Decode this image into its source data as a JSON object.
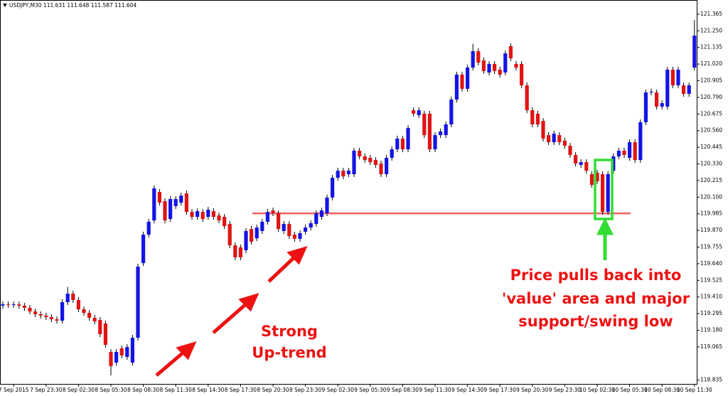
{
  "chart_data": {
    "type": "candlestick",
    "header": "USDJPY,M30  111.631 111.648 111.587 111.604",
    "up_color": "#1414e6",
    "down_color": "#e01414",
    "annotations": [
      "Strong",
      "Up-trend",
      "Price pulls back into",
      "'value' area and major",
      "support/swing low"
    ],
    "support_level": 119.989,
    "ylim": [
      118.809,
      121.463
    ],
    "yticks": [
      121.365,
      {
        "value": 121.25,
        "label": "121.250"
      },
      121.135,
      {
        "value": 121.02,
        "label": "121.020"
      },
      120.905,
      {
        "value": 120.79,
        "label": "120.790"
      },
      120.675,
      {
        "value": 120.56,
        "label": "120.560"
      },
      120.445,
      {
        "value": 120.33,
        "label": "120.330"
      },
      120.215,
      {
        "value": 120.1,
        "label": "120.100"
      },
      119.985,
      {
        "value": 119.87,
        "label": "119.870"
      },
      119.755,
      {
        "value": 119.64,
        "label": "119.640"
      },
      119.525,
      {
        "value": 119.41,
        "label": "119.410"
      },
      119.295,
      {
        "value": 119.18,
        "label": "119.180"
      },
      119.065,
      118.835
    ],
    "categories": [
      null,
      null,
      "7 Sep 2015",
      null,
      null,
      null,
      null,
      null,
      "7 Sep 23:30",
      null,
      null,
      null,
      null,
      null,
      "8 Sep 02:30",
      null,
      null,
      null,
      null,
      null,
      "8 Sep 05:30",
      null,
      null,
      null,
      null,
      null,
      "8 Sep 08:30",
      null,
      null,
      null,
      null,
      null,
      "8 Sep 11:30",
      null,
      null,
      null,
      null,
      null,
      "8 Sep 14:30",
      null,
      null,
      null,
      null,
      null,
      "8 Sep 17:30",
      null,
      null,
      null,
      null,
      null,
      "8 Sep 20:30",
      null,
      null,
      null,
      null,
      null,
      "8 Sep 23:30",
      null,
      null,
      null,
      null,
      null,
      "9 Sep 02:30",
      null,
      null,
      null,
      null,
      null,
      "9 Sep 05:30",
      null,
      null,
      null,
      null,
      null,
      "9 Sep 08:30",
      null,
      null,
      null,
      null,
      null,
      "9 Sep 11:30",
      null,
      null,
      null,
      null,
      null,
      "9 Sep 14:30",
      null,
      null,
      null,
      null,
      null,
      "9 Sep 17:30",
      null,
      null,
      null,
      null,
      null,
      "9 Sep 20:30",
      null,
      null,
      null,
      null,
      null,
      "9 Sep 23:30",
      null,
      null,
      null,
      null,
      null,
      "10 Sep 02:30",
      null,
      null,
      null,
      null,
      null,
      "10 Sep 05:30",
      null,
      null,
      null,
      null,
      null,
      "10 Sep 08:30",
      null,
      null,
      null,
      null,
      null,
      "10 Sep 11:30"
    ],
    "open": [
      119.35,
      119.359,
      119.355,
      119.359,
      119.35,
      119.335,
      119.31,
      119.291,
      119.281,
      119.271,
      119.256,
      119.246,
      119.374,
      119.433,
      119.389,
      119.325,
      119.3,
      119.266,
      119.251,
      119.227,
      119.03,
      118.956,
      119.055,
      118.996,
      118.956,
      119.128,
      119.644,
      119.841,
      119.939,
      120.136,
      120.072,
      119.949,
      120.038,
      120.062,
      120.126,
      119.998,
      119.964,
      119.998,
      119.964,
      120.003,
      119.974,
      119.964,
      119.915,
      119.767,
      119.753,
      119.733,
      119.88,
      119.816,
      119.866,
      119.93,
      120.008,
      119.989,
      119.866,
      119.915,
      119.841,
      119.812,
      119.861,
      119.89,
      119.915,
      119.964,
      119.989,
      120.097,
      120.234,
      120.283,
      120.259,
      120.259,
      120.421,
      120.382,
      120.372,
      120.357,
      120.332,
      120.259,
      120.372,
      120.431,
      120.505,
      120.431,
      120.701,
      120.667,
      120.677,
      120.677,
      120.431,
      120.529,
      120.529,
      120.603,
      120.775,
      120.947,
      120.849,
      120.996,
      121.109,
      121.045,
      120.962,
      121.021,
      120.981,
      120.962,
      121.144,
      121.021,
      121.021,
      120.873,
      120.701,
      120.677,
      120.627,
      120.529,
      120.48,
      120.529,
      120.49,
      120.455,
      120.392,
      120.323,
      120.342,
      120.259,
      120.269,
      120.259,
      119.998,
      120.283,
      120.382,
      120.421,
      120.372,
      120.48,
      120.357,
      120.618,
      120.824,
      120.824,
      120.726,
      120.726,
      120.981,
      120.873,
      120.873,
      120.814,
      120.996
    ],
    "high": [
      119.379,
      119.379,
      119.379,
      119.379,
      119.37,
      119.355,
      119.33,
      119.311,
      119.301,
      119.291,
      119.276,
      119.394,
      119.48,
      119.453,
      119.409,
      119.345,
      119.32,
      119.286,
      119.271,
      119.247,
      119.05,
      119.05,
      119.075,
      119.084,
      119.148,
      119.64,
      119.861,
      119.95,
      120.181,
      120.156,
      120.092,
      120.107,
      120.107,
      120.131,
      120.146,
      120.018,
      120.023,
      120.018,
      120.033,
      120.023,
      119.994,
      119.984,
      119.935,
      119.787,
      119.773,
      119.886,
      119.9,
      119.91,
      119.95,
      120.018,
      120.028,
      120.009,
      119.935,
      119.935,
      119.861,
      119.871,
      119.91,
      119.94,
      120.009,
      120.028,
      120.117,
      120.254,
      120.303,
      120.303,
      120.303,
      120.441,
      120.441,
      120.402,
      120.392,
      120.377,
      120.352,
      120.392,
      120.451,
      120.525,
      120.525,
      120.598,
      120.721,
      120.721,
      120.697,
      120.697,
      120.549,
      120.574,
      120.623,
      120.795,
      120.967,
      120.967,
      121.016,
      121.16,
      121.129,
      121.065,
      121.041,
      121.041,
      121.001,
      121.114,
      121.164,
      121.041,
      121.041,
      120.893,
      120.721,
      120.697,
      120.647,
      120.549,
      120.559,
      120.549,
      120.51,
      120.475,
      120.412,
      120.362,
      120.362,
      120.279,
      120.289,
      120.279,
      120.279,
      120.403,
      120.441,
      120.441,
      120.5,
      120.5,
      120.638,
      120.844,
      120.849,
      120.844,
      120.77,
      121.001,
      121.001,
      121.001,
      120.893,
      120.893,
      121.325
    ],
    "low": [
      119.33,
      119.335,
      119.335,
      119.33,
      119.315,
      119.29,
      119.271,
      119.261,
      119.251,
      119.236,
      119.226,
      119.226,
      119.354,
      119.369,
      119.305,
      119.28,
      119.246,
      119.221,
      119.133,
      119.059,
      118.868,
      118.936,
      118.986,
      118.976,
      118.936,
      119.108,
      119.624,
      119.821,
      119.919,
      120.042,
      119.919,
      119.929,
      120.018,
      120.042,
      119.978,
      119.944,
      119.944,
      119.929,
      119.944,
      119.944,
      119.919,
      119.88,
      119.747,
      119.664,
      119.664,
      119.713,
      119.772,
      119.796,
      119.846,
      119.91,
      119.969,
      119.86,
      119.846,
      119.811,
      119.792,
      119.792,
      119.841,
      119.87,
      119.895,
      119.944,
      119.969,
      120.077,
      120.214,
      120.224,
      120.239,
      120.239,
      120.362,
      120.337,
      120.322,
      120.303,
      120.239,
      120.239,
      120.352,
      120.411,
      120.411,
      120.411,
      120.657,
      120.647,
      120.509,
      120.411,
      120.411,
      120.509,
      120.509,
      120.583,
      120.755,
      120.829,
      120.829,
      120.976,
      121.01,
      120.952,
      120.942,
      120.952,
      120.927,
      120.942,
      121.04,
      120.976,
      120.853,
      120.681,
      120.583,
      120.583,
      120.485,
      120.46,
      120.46,
      120.46,
      120.435,
      120.372,
      120.312,
      120.303,
      120.263,
      120.165,
      120.19,
      119.978,
      119.978,
      120.263,
      120.362,
      120.372,
      120.352,
      120.337,
      120.337,
      120.598,
      120.804,
      120.706,
      120.706,
      120.706,
      120.853,
      120.853,
      120.794,
      120.794,
      120.976
    ],
    "close": [
      119.359,
      119.355,
      119.359,
      119.35,
      119.335,
      119.31,
      119.291,
      119.281,
      119.271,
      119.256,
      119.246,
      119.374,
      119.433,
      119.389,
      119.325,
      119.3,
      119.266,
      119.241,
      119.153,
      119.079,
      118.932,
      119.03,
      119.006,
      119.064,
      119.128,
      119.62,
      119.841,
      119.93,
      120.161,
      120.062,
      119.939,
      120.087,
      120.087,
      120.111,
      119.998,
      119.964,
      120.003,
      119.949,
      120.013,
      119.964,
      119.939,
      119.9,
      119.767,
      119.684,
      119.684,
      119.866,
      119.792,
      119.89,
      119.93,
      119.998,
      119.989,
      119.88,
      119.915,
      119.831,
      119.812,
      119.851,
      119.89,
      119.92,
      119.989,
      120.008,
      120.097,
      120.234,
      120.283,
      120.244,
      120.283,
      120.421,
      120.382,
      120.357,
      120.342,
      120.323,
      120.259,
      120.372,
      120.431,
      120.505,
      120.431,
      120.578,
      120.677,
      120.701,
      120.529,
      120.431,
      120.529,
      120.554,
      120.603,
      120.775,
      120.947,
      120.849,
      120.996,
      121.109,
      121.03,
      120.972,
      121.021,
      120.972,
      120.947,
      121.094,
      121.06,
      120.996,
      120.873,
      120.701,
      120.603,
      120.603,
      120.505,
      120.48,
      120.539,
      120.48,
      120.455,
      120.392,
      120.332,
      120.342,
      120.283,
      120.185,
      120.21,
      119.998,
      120.259,
      120.382,
      120.421,
      120.392,
      120.48,
      120.357,
      120.618,
      120.824,
      120.829,
      120.726,
      120.75,
      120.981,
      120.873,
      120.981,
      120.814,
      120.873,
      121.217
    ]
  }
}
